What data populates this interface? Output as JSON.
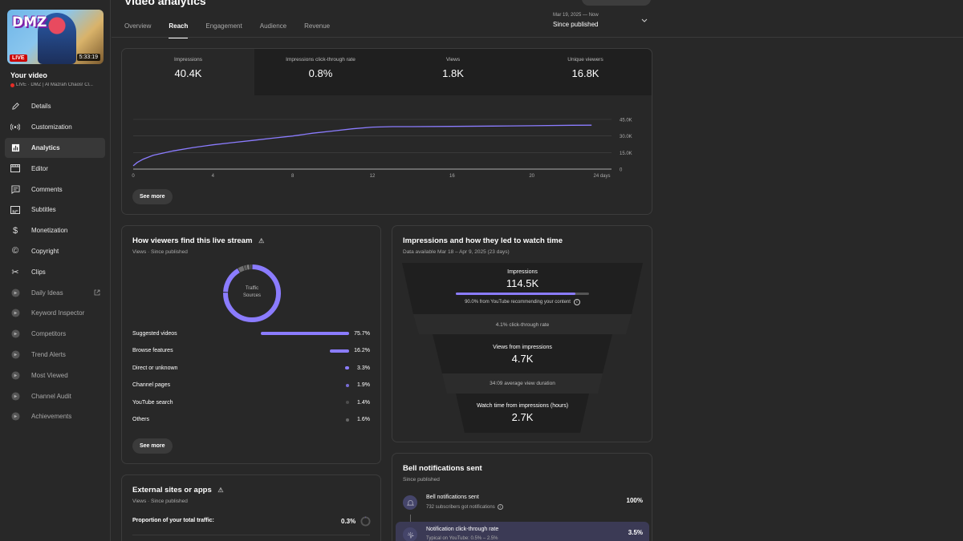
{
  "video": {
    "thumb_logo": "DMZ",
    "live_badge": "LIVE",
    "duration": "5:33:19",
    "label": "Your video",
    "subtitle": "LIVE · DMZ | Al Mazrah Chaos! Cl..."
  },
  "nav": [
    {
      "label": "Details",
      "icon": "pencil-icon"
    },
    {
      "label": "Customization",
      "icon": "broadcast-icon"
    },
    {
      "label": "Analytics",
      "icon": "analytics-icon",
      "active": true
    },
    {
      "label": "Editor",
      "icon": "film-icon"
    },
    {
      "label": "Comments",
      "icon": "comments-icon"
    },
    {
      "label": "Subtitles",
      "icon": "subtitles-icon"
    },
    {
      "label": "Monetization",
      "icon": "dollar-icon"
    },
    {
      "label": "Copyright",
      "icon": "copyright-icon"
    },
    {
      "label": "Clips",
      "icon": "scissors-icon"
    },
    {
      "label": "Daily Ideas",
      "icon": "extension-icon",
      "external": true
    },
    {
      "label": "Keyword Inspector",
      "icon": "extension-icon"
    },
    {
      "label": "Competitors",
      "icon": "extension-icon"
    },
    {
      "label": "Trend Alerts",
      "icon": "extension-icon"
    },
    {
      "label": "Most Viewed",
      "icon": "extension-icon"
    },
    {
      "label": "Channel Audit",
      "icon": "extension-icon"
    },
    {
      "label": "Achievements",
      "icon": "extension-icon"
    }
  ],
  "header": {
    "title": "Video analytics",
    "tabs": [
      "Overview",
      "Reach",
      "Engagement",
      "Audience",
      "Revenue"
    ],
    "active_tab": "Reach",
    "date_small": "Mar 19, 2025 — Now",
    "date_main": "Since published"
  },
  "reach": {
    "metrics": [
      {
        "label": "Impressions",
        "value": "40.4K"
      },
      {
        "label": "Impressions click-through rate",
        "value": "0.8%"
      },
      {
        "label": "Views",
        "value": "1.8K"
      },
      {
        "label": "Unique viewers",
        "value": "16.8K"
      }
    ],
    "see_more": "See more",
    "chart_data": {
      "type": "line",
      "x_ticks": [
        "0",
        "4",
        "8",
        "12",
        "16",
        "20",
        "24 days"
      ],
      "y_ticks": [
        "0",
        "15.0K",
        "30.0K",
        "45.0K"
      ],
      "ylim": [
        0,
        45000
      ],
      "xlim": [
        0,
        24
      ],
      "series": [
        {
          "x": [
            0,
            0.2,
            0.5,
            1,
            1.5,
            2,
            3,
            4,
            5,
            6,
            7,
            8,
            9,
            10,
            11,
            12,
            13,
            14,
            16,
            18,
            20,
            22,
            23
          ],
          "y": [
            3000,
            6000,
            9000,
            12500,
            14500,
            16500,
            19500,
            22000,
            24000,
            26000,
            28000,
            30000,
            32500,
            34500,
            36500,
            38000,
            38500,
            38500,
            38700,
            39000,
            39300,
            39700,
            39800
          ]
        }
      ],
      "color": "#8b7cff"
    }
  },
  "traffic": {
    "title": "How viewers find this live stream",
    "subtitle": "Views · Since published",
    "donut_label_1": "Traffic",
    "donut_label_2": "Sources",
    "sources": [
      {
        "name": "Suggested videos",
        "value": 75.7,
        "pct": "75.7%"
      },
      {
        "name": "Browse features",
        "value": 16.2,
        "pct": "16.2%"
      },
      {
        "name": "Direct or unknown",
        "value": 3.3,
        "pct": "3.3%"
      },
      {
        "name": "Channel pages",
        "value": 1.9,
        "pct": "1.9%"
      },
      {
        "name": "YouTube search",
        "value": 1.4,
        "pct": "1.4%"
      },
      {
        "name": "Others",
        "value": 1.6,
        "pct": "1.6%"
      }
    ],
    "see_more": "See more"
  },
  "external": {
    "title": "External sites or apps",
    "subtitle": "Views · Since published",
    "proportion_label": "Proportion of your total traffic:",
    "proportion_value": "0.3%"
  },
  "funnel": {
    "title": "Impressions and how they led to watch time",
    "subtitle": "Data available Mar 18 – Apr 9, 2025 (23 days)",
    "impressions_label": "Impressions",
    "impressions_value": "114.5K",
    "impressions_fill": 0.9,
    "impressions_note": "90.0% from YouTube recommending your content",
    "ctr": "4.1% click-through rate",
    "views_label": "Views from impressions",
    "views_value": "4.7K",
    "avd": "34:09 average view duration",
    "watch_label": "Watch time from impressions (hours)",
    "watch_value": "2.7K"
  },
  "bell": {
    "title": "Bell notifications sent",
    "subtitle": "Since published",
    "rows": [
      {
        "title": "Bell notifications sent",
        "sub": "732 subscribers got notifications",
        "pct": "100%"
      },
      {
        "title": "Notification click-through rate",
        "sub": "Typical on YouTube: 0.5% – 2.5%",
        "pct": "3.5%"
      }
    ]
  }
}
